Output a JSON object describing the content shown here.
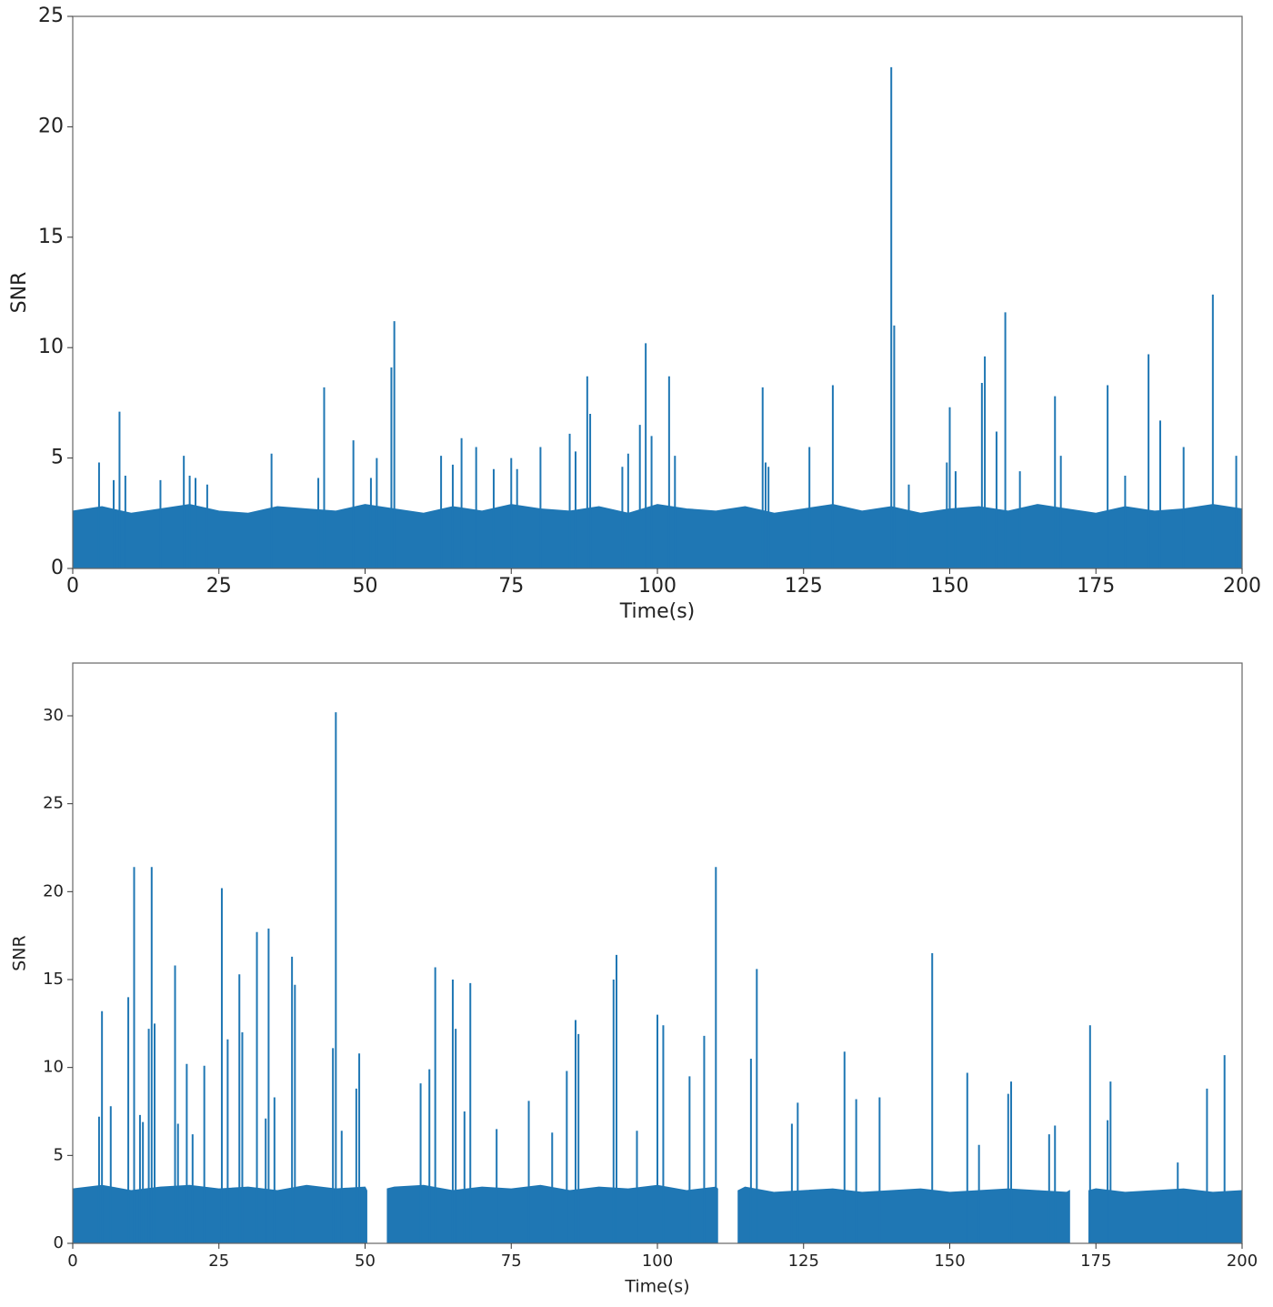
{
  "chart_data": [
    {
      "type": "stem",
      "xlabel": "Time(s)",
      "ylabel": "SNR",
      "xlim": [
        0,
        200
      ],
      "xticks": [
        0,
        25,
        50,
        75,
        100,
        125,
        150,
        175,
        200
      ],
      "ylim": [
        0,
        25
      ],
      "yticks": [
        0,
        5,
        10,
        15,
        20,
        25
      ],
      "series": [
        {
          "color": "#1f77b4",
          "style": "area",
          "x": [
            0,
            5,
            10,
            15,
            20,
            25,
            30,
            35,
            40,
            45,
            50,
            55,
            60,
            65,
            70,
            75,
            80,
            85,
            90,
            95,
            100,
            105,
            110,
            115,
            120,
            125,
            130,
            135,
            140,
            145,
            150,
            155,
            160,
            165,
            170,
            175,
            180,
            185,
            190,
            195,
            200
          ],
          "values": [
            2.6,
            2.8,
            2.5,
            2.7,
            2.9,
            2.6,
            2.5,
            2.8,
            2.7,
            2.6,
            2.9,
            2.7,
            2.5,
            2.8,
            2.6,
            2.9,
            2.7,
            2.6,
            2.8,
            2.5,
            2.9,
            2.7,
            2.6,
            2.8,
            2.5,
            2.7,
            2.9,
            2.6,
            2.8,
            2.5,
            2.7,
            2.8,
            2.6,
            2.9,
            2.7,
            2.5,
            2.8,
            2.6,
            2.7,
            2.9,
            2.7
          ]
        },
        {
          "color": "#1f77b4",
          "style": "stem",
          "x": [
            4.5,
            7,
            8,
            9,
            15,
            19,
            20,
            21,
            23,
            34,
            42,
            43,
            48,
            51,
            52,
            54.5,
            55,
            63,
            65,
            66.5,
            69,
            72,
            75,
            76,
            80,
            85,
            86,
            88,
            88.5,
            94,
            95,
            97,
            98,
            99,
            102,
            103,
            118,
            118.5,
            119,
            126,
            130,
            140,
            140.5,
            143,
            149.5,
            150,
            151,
            155.5,
            156,
            158,
            159.5,
            162,
            168,
            169,
            177,
            180,
            184,
            186,
            190,
            195,
            199
          ],
          "values": [
            4.8,
            4.0,
            7.1,
            4.2,
            4.0,
            5.1,
            4.2,
            4.1,
            3.8,
            5.2,
            4.1,
            8.2,
            5.8,
            4.1,
            5.0,
            9.1,
            11.2,
            5.1,
            4.7,
            5.9,
            5.5,
            4.5,
            5.0,
            4.5,
            5.5,
            6.1,
            5.3,
            8.7,
            7.0,
            4.6,
            5.2,
            6.5,
            10.2,
            6.0,
            8.7,
            5.1,
            8.2,
            4.8,
            4.6,
            5.5,
            8.3,
            22.7,
            11.0,
            3.8,
            4.8,
            7.3,
            4.4,
            8.4,
            9.6,
            6.2,
            11.6,
            4.4,
            7.8,
            5.1,
            8.3,
            4.2,
            9.7,
            6.7,
            5.5,
            12.4,
            5.1
          ]
        }
      ]
    },
    {
      "type": "stem",
      "xlabel": "Time(s)",
      "ylabel": "SNR",
      "xlim": [
        0,
        200
      ],
      "xticks": [
        0,
        25,
        50,
        75,
        100,
        125,
        150,
        175,
        200
      ],
      "ylim": [
        0,
        33
      ],
      "yticks": [
        0,
        5,
        10,
        15,
        20,
        25,
        30
      ],
      "series": [
        {
          "color": "#1f77b4",
          "style": "area",
          "x": [
            0,
            5,
            10,
            15,
            20,
            25,
            30,
            35,
            40,
            45,
            50,
            50.3,
            52,
            53.8,
            55,
            60,
            65,
            70,
            75,
            80,
            85,
            90,
            95,
            100,
            105,
            110,
            110.3,
            112,
            113.8,
            115,
            120,
            125,
            130,
            135,
            140,
            145,
            150,
            155,
            160,
            165,
            170,
            170.5,
            172,
            173.8,
            175,
            180,
            185,
            190,
            195,
            200
          ],
          "values": [
            3.1,
            3.3,
            3.0,
            3.2,
            3.3,
            3.1,
            3.2,
            3.0,
            3.3,
            3.1,
            3.2,
            3.0,
            null,
            3.1,
            3.2,
            3.3,
            3.0,
            3.2,
            3.1,
            3.3,
            3.0,
            3.2,
            3.1,
            3.3,
            3.0,
            3.2,
            3.1,
            null,
            3.0,
            3.2,
            2.9,
            3.0,
            3.1,
            2.9,
            3.0,
            3.1,
            2.9,
            3.0,
            3.1,
            3.0,
            2.9,
            3.0,
            null,
            3.0,
            3.1,
            2.9,
            3.0,
            3.1,
            2.9,
            3.0
          ]
        },
        {
          "color": "#1f77b4",
          "style": "stem",
          "x": [
            4.5,
            5,
            6.5,
            9.5,
            10.5,
            11.5,
            12,
            13,
            13.5,
            14,
            17.5,
            18,
            19.5,
            20.5,
            22.5,
            25.5,
            26.5,
            28.5,
            29,
            31.5,
            33,
            33.5,
            34.5,
            37.5,
            38,
            44.5,
            45,
            46,
            48.5,
            49,
            59.5,
            61,
            62,
            65,
            65.5,
            67,
            68,
            72.5,
            78,
            82,
            84.5,
            86,
            86.5,
            92.5,
            93,
            96.5,
            100,
            101,
            105.5,
            108,
            110,
            116,
            117,
            123,
            124,
            132,
            134,
            138,
            147,
            153,
            155,
            160,
            160.5,
            167,
            168,
            174,
            177,
            177.5,
            189,
            194,
            197
          ],
          "values": [
            7.2,
            13.2,
            7.8,
            14.0,
            21.4,
            7.3,
            6.9,
            12.2,
            21.4,
            12.5,
            15.8,
            6.8,
            10.2,
            6.2,
            10.1,
            20.2,
            11.6,
            15.3,
            12.0,
            17.7,
            7.1,
            17.9,
            8.3,
            16.3,
            14.7,
            11.1,
            30.2,
            6.4,
            8.8,
            10.8,
            9.1,
            9.9,
            15.7,
            15.0,
            12.2,
            7.5,
            14.8,
            6.5,
            8.1,
            6.3,
            9.8,
            12.7,
            11.9,
            15.0,
            16.4,
            6.4,
            13.0,
            12.4,
            9.5,
            11.8,
            21.4,
            10.5,
            15.6,
            6.8,
            8.0,
            10.9,
            8.2,
            8.3,
            16.5,
            9.7,
            5.6,
            8.5,
            9.2,
            6.2,
            6.7,
            12.4,
            7.0,
            9.2,
            4.6,
            8.8,
            10.7
          ]
        }
      ]
    }
  ]
}
